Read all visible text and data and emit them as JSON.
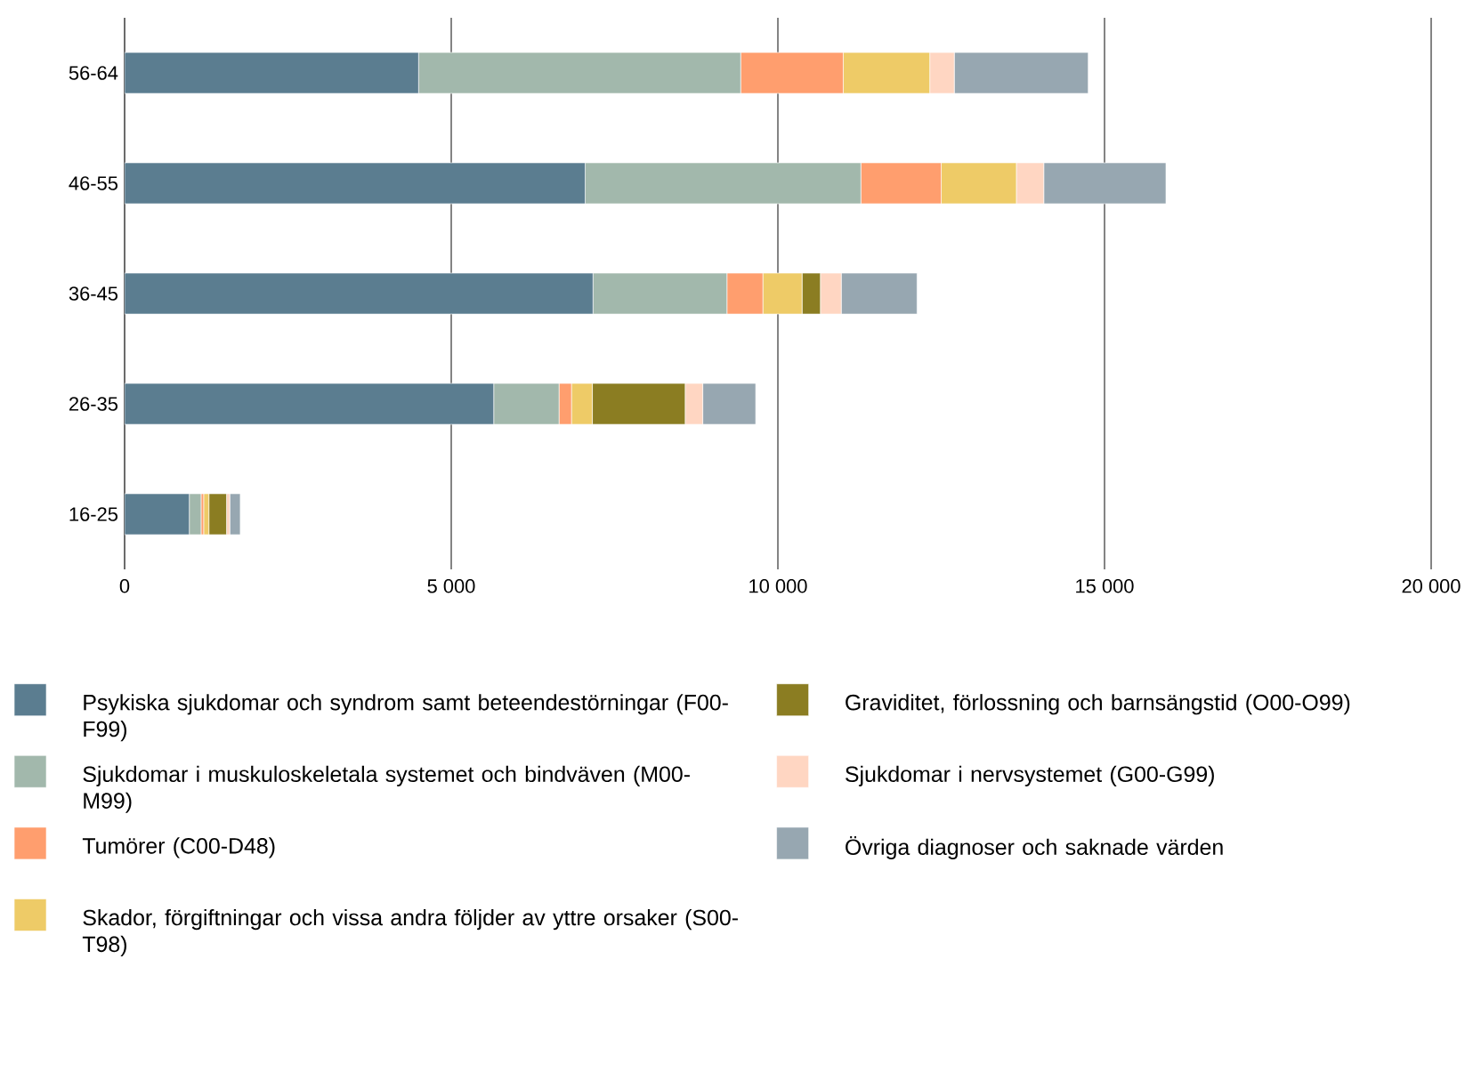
{
  "chart_data": {
    "type": "bar",
    "orientation": "horizontal",
    "stacked": true,
    "categories": [
      "56-64",
      "46-55",
      "36-45",
      "26-35",
      "16-25"
    ],
    "series": [
      {
        "name": "Psykiska sjukdomar och syndrom samt beteendestörningar (F00-F99)",
        "color": "#5b7d90",
        "values": [
          4500,
          7050,
          7170,
          5650,
          990
        ]
      },
      {
        "name": "Sjukdomar i muskuloskeletala systemet och bindväven (M00-M99)",
        "color": "#a2b8ac",
        "values": [
          4930,
          4220,
          2050,
          1000,
          180
        ]
      },
      {
        "name": "Tumörer (C00-D48)",
        "color": "#ff9e6e",
        "values": [
          1570,
          1230,
          550,
          190,
          40
        ]
      },
      {
        "name": "Skador, förgiftningar och vissa andra följder av yttre orsaker (S00-T98)",
        "color": "#eecb67",
        "values": [
          1325,
          1150,
          600,
          320,
          80
        ]
      },
      {
        "name": "Graviditet, förlossning och barnsängstid (O00-O99)",
        "color": "#8b7d22",
        "values": [
          0,
          0,
          280,
          1420,
          270
        ]
      },
      {
        "name": "Sjukdomar i nervsystemet (G00-G99)",
        "color": "#ffd6c2",
        "values": [
          375,
          420,
          320,
          270,
          50
        ]
      },
      {
        "name": "Övriga diagnoser och saknade värden",
        "color": "#97a7b1",
        "values": [
          2050,
          1870,
          1160,
          810,
          160
        ]
      }
    ],
    "xlim": [
      0,
      20000
    ],
    "xticks": [
      0,
      {
        "value": 5000,
        "label": "5 000"
      },
      {
        "value": 10000,
        "label": "10 000"
      },
      {
        "value": 15000,
        "label": "15 000"
      },
      {
        "value": 20000,
        "label": "20 000"
      }
    ],
    "grid": "x",
    "legend": "bottom"
  }
}
